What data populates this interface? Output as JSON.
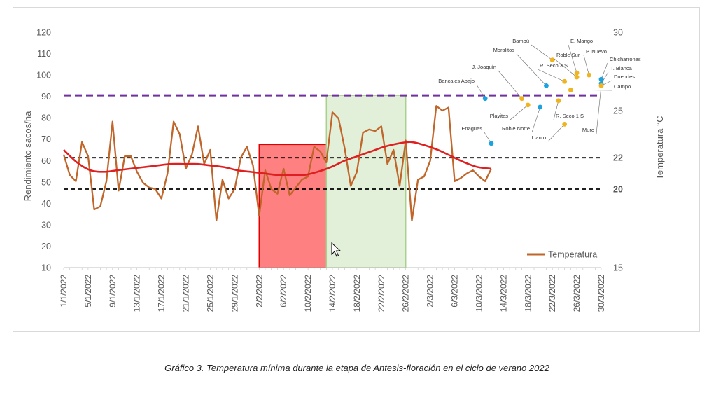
{
  "caption": "Gráfico 3. Temperatura mínima durante la etapa de Antesis-floración en el ciclo de verano 2022",
  "chart_data": {
    "type": "line",
    "ylabel": "Rendimiento sacos/ha",
    "y2label": "Temperatura °C",
    "ylim": [
      10,
      120
    ],
    "yticks": [
      10,
      20,
      30,
      40,
      50,
      60,
      70,
      80,
      90,
      100,
      110,
      120
    ],
    "y2lim": [
      15,
      30
    ],
    "y2ticks": [
      {
        "value": 15,
        "label": "15",
        "bold": false
      },
      {
        "value": 20,
        "label": "20",
        "bold": true
      },
      {
        "value": 22,
        "label": "22",
        "bold": true
      },
      {
        "value": 25,
        "label": "25",
        "bold": false
      },
      {
        "value": 30,
        "label": "30",
        "bold": false
      }
    ],
    "x_start": "2022-01-01",
    "x_end": "2022-03-30",
    "xtick_labels": [
      "1/1/2022",
      "5/1/2022",
      "9/1/2022",
      "13/1/2022",
      "17/1/2022",
      "21/1/2022",
      "25/1/2022",
      "29/1/2022",
      "2/2/2022",
      "6/2/2022",
      "10/2/2022",
      "14/2/2022",
      "18/2/2022",
      "22/2/2022",
      "26/2/2022",
      "2/3/2022",
      "6/3/2022",
      "10/3/2022",
      "14/3/2022",
      "18/3/2022",
      "22/3/2022",
      "26/3/2022",
      "30/3/2022"
    ],
    "series": [
      {
        "name": "Temperatura",
        "color": "#c0662a",
        "axis": "y2",
        "values": [
          22.2,
          20.9,
          20.5,
          23.0,
          22.1,
          18.7,
          18.9,
          20.5,
          24.3,
          19.9,
          22.1,
          22.1,
          21.1,
          20.4,
          20.1,
          20.0,
          19.4,
          21.0,
          24.3,
          23.5,
          21.3,
          22.2,
          24.0,
          21.6,
          22.5,
          18.0,
          20.6,
          19.4,
          20.0,
          22.0,
          22.7,
          21.5,
          18.3,
          21.2,
          20.0,
          19.7,
          21.3,
          19.6,
          20.1,
          20.6,
          20.8,
          22.7,
          22.4,
          21.7,
          24.9,
          24.5,
          22.6,
          20.2,
          21.1,
          23.6,
          23.8,
          23.7,
          24.0,
          21.6,
          22.5,
          20.2,
          23.1,
          18.0,
          20.6,
          20.8,
          21.8,
          25.3,
          25.0,
          25.2,
          20.5,
          20.7,
          21.0,
          21.2,
          20.8,
          20.5,
          21.3
        ]
      },
      {
        "name": "",
        "color": "#e02020",
        "axis": "y2",
        "values": [
          22.5,
          21.7,
          21.2,
          21.1,
          21.2,
          21.3,
          21.4,
          21.5,
          21.6,
          21.6,
          21.6,
          21.5,
          21.4,
          21.2,
          21.1,
          21.0,
          20.9,
          20.9,
          20.9,
          21.1,
          21.4,
          21.8,
          22.1,
          22.4,
          22.7,
          22.9,
          23.0,
          22.8,
          22.5,
          22.1,
          21.7,
          21.4,
          21.3
        ]
      }
    ],
    "hlines": [
      {
        "axis": "y",
        "value": 90.5,
        "color": "#7030a0"
      },
      {
        "axis": "y2",
        "value": 22,
        "color": "#000000"
      },
      {
        "axis": "y2",
        "value": 20,
        "color": "#000000"
      }
    ],
    "periods": [
      {
        "from": "2022-02-02",
        "to": "2022-02-13",
        "top": 67.5,
        "color": "#ff8080",
        "stroke": "#e00000"
      },
      {
        "from": "2022-02-13",
        "to": "2022-02-26",
        "top": 90.5,
        "color": "#e2efd9",
        "stroke": "#a9d18e"
      }
    ],
    "sites": [
      {
        "label": "Bambú",
        "date": "2022-03-22",
        "y": 107,
        "color": "#f0b41e"
      },
      {
        "label": "E. Mango",
        "date": "2022-03-26",
        "y": 101,
        "color": "#f0b41e"
      },
      {
        "label": "Moralitos",
        "date": "2022-03-21",
        "y": 95,
        "color": "#1aa3e0"
      },
      {
        "label": "Roble Sur",
        "date": "2022-03-26",
        "y": 99,
        "color": "#f0b41e"
      },
      {
        "label": "P. Nuevo",
        "date": "2022-03-28",
        "y": 100,
        "color": "#f0b41e"
      },
      {
        "label": "R. Seco 3 S",
        "date": "2022-03-24",
        "y": 97,
        "color": "#f0b41e"
      },
      {
        "label": "Chicharrones",
        "date": "2022-03-30",
        "y": 98,
        "color": "#1aa3e0"
      },
      {
        "label": "J. Joaquín",
        "date": "2022-03-17",
        "y": 89,
        "color": "#f0b41e"
      },
      {
        "label": "T. Blanca",
        "date": "2022-03-30",
        "y": 96,
        "color": "#1aa3e0"
      },
      {
        "label": "Duendes",
        "date": "2022-03-30",
        "y": 95,
        "color": "#f0b41e"
      },
      {
        "label": "Bancales Abajo",
        "date": "2022-03-11",
        "y": 89,
        "color": "#1aa3e0"
      },
      {
        "label": "Campo",
        "date": "2022-03-25",
        "y": 93,
        "color": "#f0b41e"
      },
      {
        "label": "Playitas",
        "date": "2022-03-18",
        "y": 86,
        "color": "#f0b41e"
      },
      {
        "label": "Roble Norte",
        "date": "2022-03-20",
        "y": 85,
        "color": "#1aa3e0"
      },
      {
        "label": "R. Seco 1 S",
        "date": "2022-03-23",
        "y": 88,
        "color": "#f0b41e"
      },
      {
        "label": "Enaguas",
        "date": "2022-03-12",
        "y": 68,
        "color": "#1aa3e0"
      },
      {
        "label": "Llanto",
        "date": "2022-03-24",
        "y": 77,
        "color": "#f0b41e"
      },
      {
        "label": "Muro",
        "date": "2022-03-30",
        "y": 95,
        "color": "#f0b41e"
      }
    ],
    "legend": {
      "label": "Temperatura",
      "position": "bottom-right"
    }
  }
}
